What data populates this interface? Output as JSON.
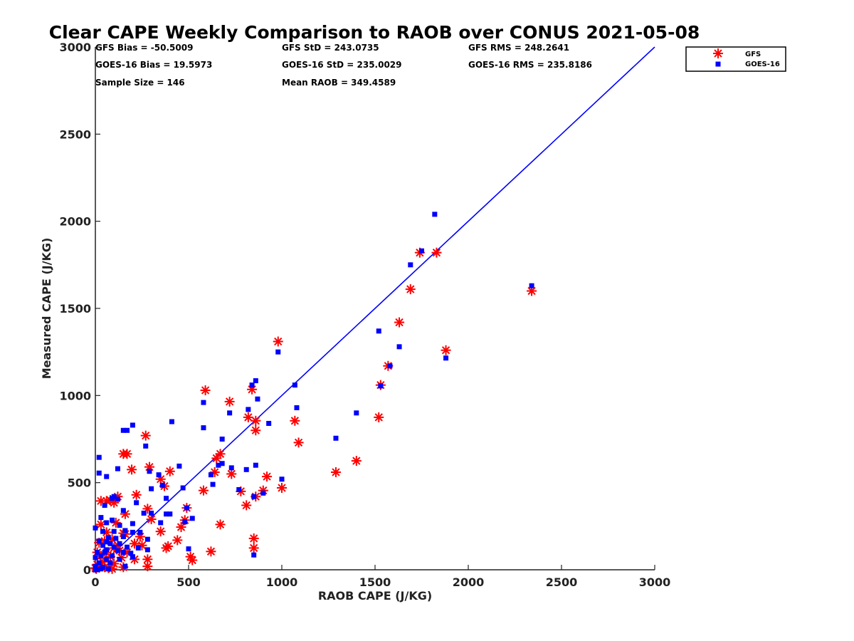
{
  "chart_data": {
    "type": "scatter",
    "title": "Clear CAPE Weekly Comparison to RAOB over CONUS 2021-05-08",
    "xlabel": "RAOB CAPE (J/KG)",
    "ylabel": "Measured CAPE (J/KG)",
    "xlim": [
      0,
      3000
    ],
    "ylim": [
      0,
      3000
    ],
    "xticks": [
      "0",
      "500",
      "1000",
      "1500",
      "2000",
      "2500",
      "3000"
    ],
    "yticks": [
      "0",
      "500",
      "1000",
      "1500",
      "2000",
      "2500",
      "3000"
    ],
    "legend_position": "top-right",
    "stats": {
      "gfs_bias": "GFS Bias = -50.5009",
      "gfs_std": "GFS StD = 243.0735",
      "gfs_rms": "GFS RMS = 248.2641",
      "goes_bias": "GOES-16 Bias = 19.5973",
      "goes_std": "GOES-16 StD = 235.0029",
      "goes_rms": "GOES-16 RMS = 235.8186",
      "sample_size": "Sample Size = 146",
      "mean_raob": "Mean RAOB = 349.4589"
    },
    "reference_line": {
      "name": "1:1 line",
      "from": [
        0,
        0
      ],
      "to": [
        3000,
        3000
      ],
      "color": "#0000ff"
    },
    "series": [
      {
        "name": "GFS",
        "marker": "asterisk",
        "color": "#ff0000",
        "points": [
          [
            1830,
            1820
          ],
          [
            1740,
            1820
          ],
          [
            2340,
            1600
          ],
          [
            1690,
            1610
          ],
          [
            1630,
            1420
          ],
          [
            1880,
            1260
          ],
          [
            1570,
            1170
          ],
          [
            1530,
            1060
          ],
          [
            1520,
            875
          ],
          [
            980,
            1310
          ],
          [
            590,
            1030
          ],
          [
            840,
            1035
          ],
          [
            720,
            965
          ],
          [
            820,
            875
          ],
          [
            860,
            855
          ],
          [
            1070,
            855
          ],
          [
            860,
            800
          ],
          [
            1090,
            730
          ],
          [
            1400,
            625
          ],
          [
            1290,
            560
          ],
          [
            670,
            665
          ],
          [
            650,
            640
          ],
          [
            640,
            560
          ],
          [
            730,
            550
          ],
          [
            580,
            455
          ],
          [
            780,
            450
          ],
          [
            920,
            535
          ],
          [
            1000,
            470
          ],
          [
            900,
            455
          ],
          [
            860,
            420
          ],
          [
            810,
            370
          ],
          [
            670,
            260
          ],
          [
            850,
            180
          ],
          [
            850,
            125
          ],
          [
            620,
            105
          ],
          [
            510,
            75
          ],
          [
            520,
            55
          ],
          [
            150,
            665
          ],
          [
            170,
            665
          ],
          [
            270,
            770
          ],
          [
            195,
            575
          ],
          [
            290,
            590
          ],
          [
            350,
            520
          ],
          [
            400,
            565
          ],
          [
            370,
            480
          ],
          [
            220,
            430
          ],
          [
            120,
            420
          ],
          [
            80,
            400
          ],
          [
            30,
            395
          ],
          [
            60,
            395
          ],
          [
            100,
            385
          ],
          [
            280,
            350
          ],
          [
            160,
            320
          ],
          [
            30,
            260
          ],
          [
            110,
            270
          ],
          [
            490,
            355
          ],
          [
            480,
            285
          ],
          [
            460,
            245
          ],
          [
            300,
            290
          ],
          [
            350,
            220
          ],
          [
            150,
            210
          ],
          [
            60,
            215
          ],
          [
            90,
            175
          ],
          [
            160,
            205
          ],
          [
            240,
            190
          ],
          [
            440,
            170
          ],
          [
            210,
            150
          ],
          [
            250,
            140
          ],
          [
            100,
            125
          ],
          [
            380,
            125
          ],
          [
            390,
            135
          ],
          [
            20,
            155
          ],
          [
            50,
            165
          ],
          [
            120,
            140
          ],
          [
            130,
            110
          ],
          [
            170,
            100
          ],
          [
            10,
            100
          ],
          [
            60,
            100
          ],
          [
            30,
            80
          ],
          [
            80,
            75
          ],
          [
            140,
            70
          ],
          [
            210,
            60
          ],
          [
            280,
            60
          ],
          [
            40,
            45
          ],
          [
            100,
            35
          ],
          [
            10,
            30
          ],
          [
            20,
            20
          ],
          [
            50,
            15
          ],
          [
            150,
            15
          ],
          [
            280,
            20
          ],
          [
            0,
            10
          ],
          [
            5,
            5
          ],
          [
            70,
            10
          ],
          [
            90,
            5
          ]
        ]
      },
      {
        "name": "GOES-16",
        "marker": "square",
        "color": "#0000ff",
        "points": [
          [
            1820,
            2040
          ],
          [
            1750,
            1830
          ],
          [
            1690,
            1750
          ],
          [
            2340,
            1630
          ],
          [
            1520,
            1370
          ],
          [
            1630,
            1280
          ],
          [
            980,
            1250
          ],
          [
            1880,
            1215
          ],
          [
            1580,
            1170
          ],
          [
            1530,
            1055
          ],
          [
            1070,
            1060
          ],
          [
            860,
            1085
          ],
          [
            840,
            1060
          ],
          [
            870,
            980
          ],
          [
            580,
            960
          ],
          [
            1080,
            930
          ],
          [
            820,
            920
          ],
          [
            720,
            900
          ],
          [
            1400,
            900
          ],
          [
            410,
            850
          ],
          [
            200,
            830
          ],
          [
            930,
            840
          ],
          [
            580,
            815
          ],
          [
            150,
            800
          ],
          [
            170,
            800
          ],
          [
            680,
            750
          ],
          [
            1290,
            755
          ],
          [
            270,
            710
          ],
          [
            20,
            645
          ],
          [
            60,
            535
          ],
          [
            20,
            555
          ],
          [
            120,
            580
          ],
          [
            290,
            565
          ],
          [
            340,
            545
          ],
          [
            450,
            595
          ],
          [
            620,
            545
          ],
          [
            660,
            600
          ],
          [
            680,
            610
          ],
          [
            860,
            600
          ],
          [
            730,
            585
          ],
          [
            810,
            575
          ],
          [
            100,
            420
          ],
          [
            120,
            405
          ],
          [
            90,
            410
          ],
          [
            220,
            385
          ],
          [
            380,
            410
          ],
          [
            300,
            465
          ],
          [
            360,
            485
          ],
          [
            470,
            470
          ],
          [
            630,
            490
          ],
          [
            770,
            460
          ],
          [
            900,
            440
          ],
          [
            850,
            420
          ],
          [
            1000,
            520
          ],
          [
            50,
            370
          ],
          [
            150,
            340
          ],
          [
            260,
            325
          ],
          [
            300,
            325
          ],
          [
            380,
            320
          ],
          [
            400,
            320
          ],
          [
            490,
            355
          ],
          [
            520,
            295
          ],
          [
            480,
            275
          ],
          [
            350,
            270
          ],
          [
            30,
            300
          ],
          [
            90,
            285
          ],
          [
            60,
            270
          ],
          [
            130,
            255
          ],
          [
            200,
            265
          ],
          [
            0,
            240
          ],
          [
            40,
            220
          ],
          [
            100,
            220
          ],
          [
            160,
            225
          ],
          [
            200,
            215
          ],
          [
            240,
            215
          ],
          [
            70,
            185
          ],
          [
            110,
            180
          ],
          [
            150,
            190
          ],
          [
            280,
            175
          ],
          [
            20,
            165
          ],
          [
            60,
            160
          ],
          [
            80,
            150
          ],
          [
            130,
            150
          ],
          [
            40,
            140
          ],
          [
            100,
            130
          ],
          [
            170,
            130
          ],
          [
            230,
            125
          ],
          [
            60,
            115
          ],
          [
            120,
            110
          ],
          [
            280,
            115
          ],
          [
            500,
            120
          ],
          [
            10,
            100
          ],
          [
            50,
            100
          ],
          [
            150,
            100
          ],
          [
            190,
            95
          ],
          [
            30,
            80
          ],
          [
            90,
            80
          ],
          [
            200,
            75
          ],
          [
            0,
            70
          ],
          [
            60,
            60
          ],
          [
            130,
            60
          ],
          [
            20,
            40
          ],
          [
            80,
            40
          ],
          [
            160,
            20
          ],
          [
            0,
            20
          ],
          [
            40,
            15
          ],
          [
            0,
            0
          ],
          [
            10,
            0
          ],
          [
            30,
            5
          ],
          [
            70,
            5
          ],
          [
            850,
            85
          ]
        ]
      }
    ]
  }
}
